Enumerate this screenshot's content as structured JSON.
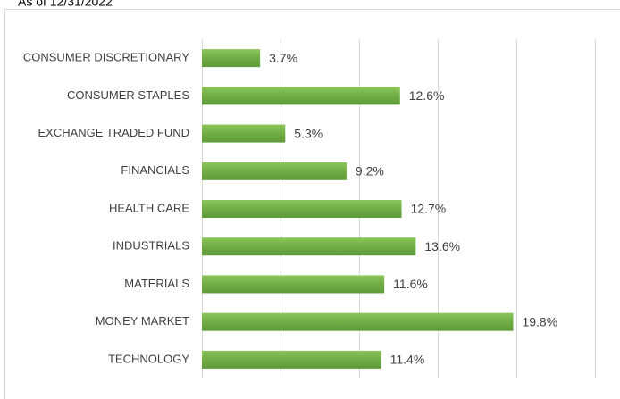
{
  "chart_data": {
    "type": "bar",
    "subtitle": "As of 12/31/2022",
    "categories": [
      "CONSUMER DISCRETIONARY",
      "CONSUMER STAPLES",
      "EXCHANGE TRADED FUND",
      "FINANCIALS",
      "HEALTH CARE",
      "INDUSTRIALS",
      "MATERIALS",
      "MONEY MARKET",
      "TECHNOLOGY"
    ],
    "values": [
      3.7,
      12.6,
      5.3,
      9.2,
      12.7,
      13.6,
      11.6,
      19.8,
      11.4
    ],
    "value_labels": [
      "3.7%",
      "12.6%",
      "5.3%",
      "9.2%",
      "12.7%",
      "13.6%",
      "11.6%",
      "19.8%",
      "11.4%"
    ],
    "color": "#70ad47",
    "xlim": [
      0,
      25
    ],
    "xticks": [
      0,
      5,
      10,
      15,
      20,
      25
    ],
    "grid": true
  }
}
